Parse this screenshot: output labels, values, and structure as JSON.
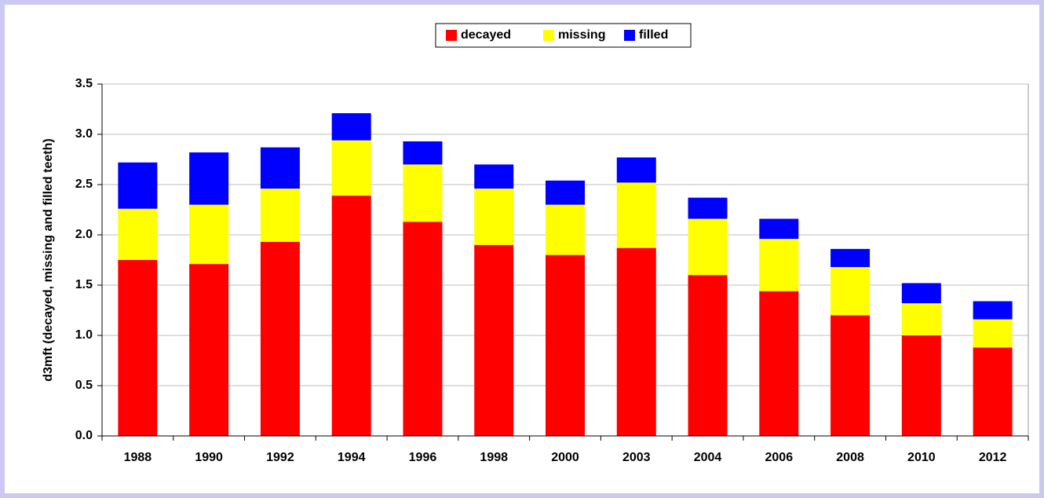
{
  "chart_data": {
    "type": "stacked_bar",
    "y_label": "d3mft (decayed, missing and filled teeth)",
    "categories": [
      "1988",
      "1990",
      "1992",
      "1994",
      "1996",
      "1998",
      "2000",
      "2003",
      "2004",
      "2006",
      "2008",
      "2010",
      "2012"
    ],
    "series": [
      {
        "name": "decayed",
        "color": "#ff0000",
        "values": [
          1.75,
          1.71,
          1.93,
          2.39,
          2.13,
          1.9,
          1.8,
          1.87,
          1.6,
          1.44,
          1.2,
          1.0,
          0.88
        ]
      },
      {
        "name": "missing",
        "color": "#ffff00",
        "values": [
          0.51,
          0.59,
          0.53,
          0.55,
          0.57,
          0.56,
          0.5,
          0.65,
          0.56,
          0.52,
          0.48,
          0.32,
          0.28
        ]
      },
      {
        "name": "filled",
        "color": "#0000ff",
        "values": [
          0.46,
          0.52,
          0.41,
          0.27,
          0.23,
          0.24,
          0.24,
          0.25,
          0.21,
          0.2,
          0.18,
          0.2,
          0.18
        ]
      }
    ],
    "ylim": [
      0,
      3.5
    ],
    "yticks": [
      {
        "value": 0,
        "label": "0.0"
      },
      0.5,
      {
        "value": 1,
        "label": "1.0"
      },
      1.5,
      {
        "value": 2,
        "label": "2.0"
      },
      2.5,
      {
        "value": 3,
        "label": "3.0"
      },
      3.5
    ],
    "grid": true,
    "legend": "top"
  }
}
